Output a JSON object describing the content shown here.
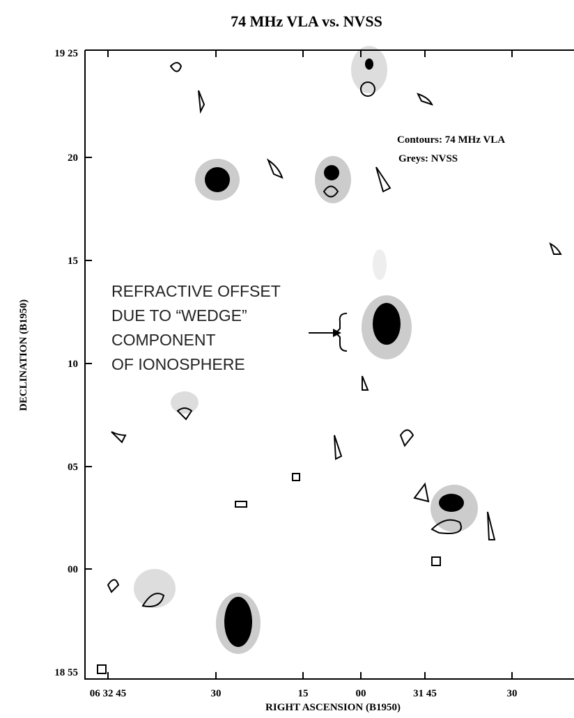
{
  "title": "74 MHz VLA vs. NVSS",
  "legend": {
    "contours": "Contours: 74 MHz VLA",
    "greys": "Greys: NVSS"
  },
  "annotation": [
    "REFRACTIVE OFFSET",
    "DUE TO “WEDGE”",
    "COMPONENT",
    "OF IONOSPHERE"
  ],
  "y_axis": {
    "label": "DECLINATION (B1950)",
    "ticks": [
      "19 25",
      "20",
      "15",
      "10",
      "05",
      "00",
      "18 55"
    ]
  },
  "x_axis": {
    "label": "RIGHT ASCENSION (B1950)",
    "ticks": [
      "06 32 45",
      "30",
      "15",
      "00",
      "31 45",
      "30"
    ]
  }
}
